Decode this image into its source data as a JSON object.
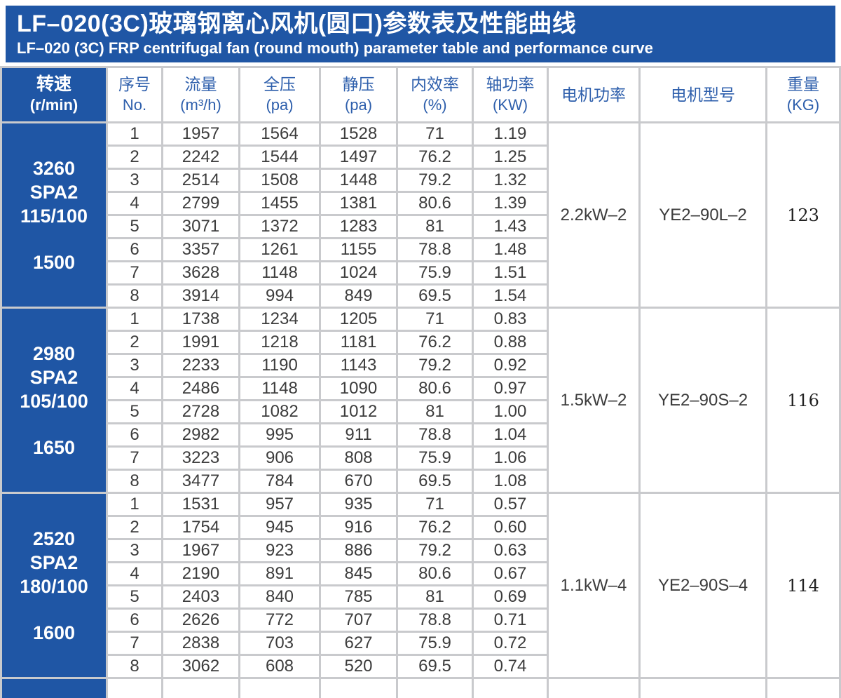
{
  "banner": {
    "title_cn": "LF–020(3C)玻璃钢离心风机(圆口)参数表及性能曲线",
    "title_en": "LF–020 (3C) FRP centrifugal fan (round mouth) parameter table and performance curve"
  },
  "colors": {
    "banner_blue": "#1f56a5",
    "header_text_blue": "#2e5fac",
    "grid_gray": "#c9cacd",
    "data_text": "#3c3c3c"
  },
  "table": {
    "columns": [
      {
        "id": "speed",
        "line1": "转速",
        "line2": "(r/min)"
      },
      {
        "id": "no",
        "line1": "序号",
        "line2": "No."
      },
      {
        "id": "flow",
        "line1": "流量",
        "line2": "(m³/h)"
      },
      {
        "id": "total_pressure",
        "line1": "全压",
        "line2": "(pa)"
      },
      {
        "id": "static_pressure",
        "line1": "静压",
        "line2": "(pa)"
      },
      {
        "id": "efficiency",
        "line1": "内效率",
        "line2": "(%)"
      },
      {
        "id": "shaft_power",
        "line1": "轴功率",
        "line2": "(KW)"
      },
      {
        "id": "motor_power",
        "line1": "电机功率",
        "line2": ""
      },
      {
        "id": "motor_model",
        "line1": "电机型号",
        "line2": ""
      },
      {
        "id": "weight",
        "line1": "重量",
        "line2": "(KG)"
      }
    ],
    "groups": [
      {
        "speed_lines": [
          "3260",
          "SPA2",
          "115/100"
        ],
        "speed_bottom": "1500",
        "motor_power": "2.2kW–2",
        "motor_model": "YE2–90L–2",
        "weight": "123",
        "rows": [
          [
            "1",
            "1957",
            "1564",
            "1528",
            "71",
            "1.19"
          ],
          [
            "2",
            "2242",
            "1544",
            "1497",
            "76.2",
            "1.25"
          ],
          [
            "3",
            "2514",
            "1508",
            "1448",
            "79.2",
            "1.32"
          ],
          [
            "4",
            "2799",
            "1455",
            "1381",
            "80.6",
            "1.39"
          ],
          [
            "5",
            "3071",
            "1372",
            "1283",
            "81",
            "1.43"
          ],
          [
            "6",
            "3357",
            "1261",
            "1155",
            "78.8",
            "1.48"
          ],
          [
            "7",
            "3628",
            "1148",
            "1024",
            "75.9",
            "1.51"
          ],
          [
            "8",
            "3914",
            "994",
            "849",
            "69.5",
            "1.54"
          ]
        ]
      },
      {
        "speed_lines": [
          "2980",
          "SPA2",
          "105/100"
        ],
        "speed_bottom": "1650",
        "motor_power": "1.5kW–2",
        "motor_model": "YE2–90S–2",
        "weight": "116",
        "rows": [
          [
            "1",
            "1738",
            "1234",
            "1205",
            "71",
            "0.83"
          ],
          [
            "2",
            "1991",
            "1218",
            "1181",
            "76.2",
            "0.88"
          ],
          [
            "3",
            "2233",
            "1190",
            "1143",
            "79.2",
            "0.92"
          ],
          [
            "4",
            "2486",
            "1148",
            "1090",
            "80.6",
            "0.97"
          ],
          [
            "5",
            "2728",
            "1082",
            "1012",
            "81",
            "1.00"
          ],
          [
            "6",
            "2982",
            "995",
            "911",
            "78.8",
            "1.04"
          ],
          [
            "7",
            "3223",
            "906",
            "808",
            "75.9",
            "1.06"
          ],
          [
            "8",
            "3477",
            "784",
            "670",
            "69.5",
            "1.08"
          ]
        ]
      },
      {
        "speed_lines": [
          "2520",
          "SPA2",
          "180/100"
        ],
        "speed_bottom": "1600",
        "motor_power": "1.1kW–4",
        "motor_model": "YE2–90S–4",
        "weight": "114",
        "rows": [
          [
            "1",
            "1531",
            "957",
            "935",
            "71",
            "0.57"
          ],
          [
            "2",
            "1754",
            "945",
            "916",
            "76.2",
            "0.60"
          ],
          [
            "3",
            "1967",
            "923",
            "886",
            "79.2",
            "0.63"
          ],
          [
            "4",
            "2190",
            "891",
            "845",
            "80.6",
            "0.67"
          ],
          [
            "5",
            "2403",
            "840",
            "785",
            "81",
            "0.69"
          ],
          [
            "6",
            "2626",
            "772",
            "707",
            "78.8",
            "0.71"
          ],
          [
            "7",
            "2838",
            "703",
            "627",
            "75.9",
            "0.72"
          ],
          [
            "8",
            "3062",
            "608",
            "520",
            "69.5",
            "0.74"
          ]
        ]
      }
    ]
  }
}
